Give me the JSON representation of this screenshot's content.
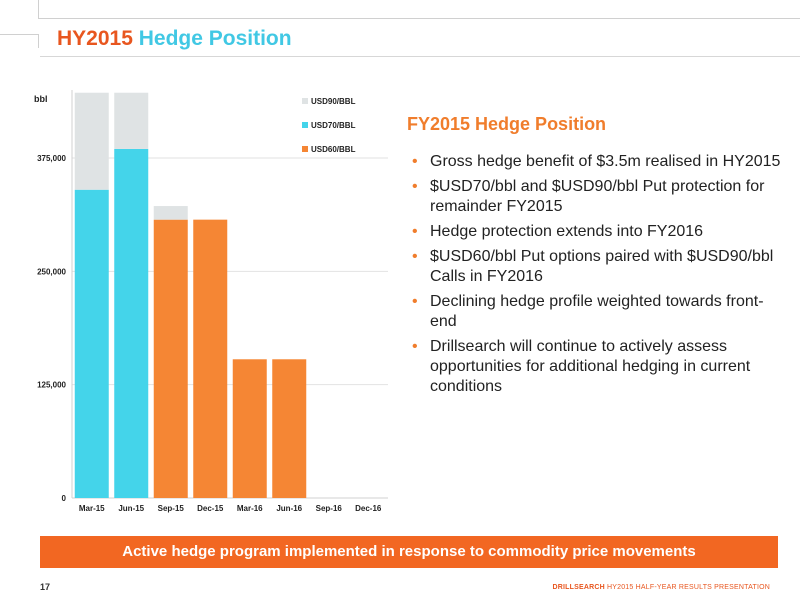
{
  "page": {
    "title_part1": "HY2015",
    "title_part2": "Hedge Position",
    "page_number": "17",
    "footer_brand": "DRILLSEARCH",
    "footer_text": "HY2015 HALF-YEAR RESULTS PRESENTATION"
  },
  "right_panel": {
    "title": "FY2015 Hedge Position",
    "bullets": [
      "Gross hedge benefit of $3.5m realised in HY2015",
      "$USD70/bbl and $USD90/bbl Put protection for remainder FY2015",
      "Hedge protection extends into FY2016",
      "$USD60/bbl Put options paired with $USD90/bbl Calls in FY2016",
      "Declining hedge profile weighted towards front-end",
      "Drillsearch will continue to actively assess opportunities for additional hedging in current conditions"
    ]
  },
  "banner": {
    "text": "Active hedge program implemented in response to commodity price movements"
  },
  "colors": {
    "usd90": "#dfe3e4",
    "usd70": "#44d4ea",
    "usd60": "#f58634",
    "accent": "#f26722"
  },
  "chart_data": {
    "type": "bar",
    "stacked": true,
    "ylabel": "bbl",
    "ylim": [
      0,
      450000
    ],
    "yticks": [
      0,
      125000,
      250000,
      375000
    ],
    "ytick_labels": [
      "0",
      "125,000",
      "250,000",
      "375,000"
    ],
    "grid": true,
    "legend_position": "top-right",
    "categories": [
      "Mar-15",
      "Jun-15",
      "Sep-15",
      "Dec-15",
      "Mar-16",
      "Jun-16",
      "Sep-16",
      "Dec-16"
    ],
    "series": [
      {
        "name": "USD60/BBL",
        "color": "#f58634",
        "values": [
          0,
          0,
          307000,
          307000,
          153000,
          153000,
          0,
          0
        ]
      },
      {
        "name": "USD70/BBL",
        "color": "#44d4ea",
        "values": [
          340000,
          385000,
          0,
          0,
          0,
          0,
          0,
          0
        ]
      },
      {
        "name": "USD90/BBL",
        "color": "#dfe3e4",
        "values": [
          107000,
          62000,
          15000,
          0,
          0,
          0,
          0,
          0
        ]
      }
    ]
  }
}
